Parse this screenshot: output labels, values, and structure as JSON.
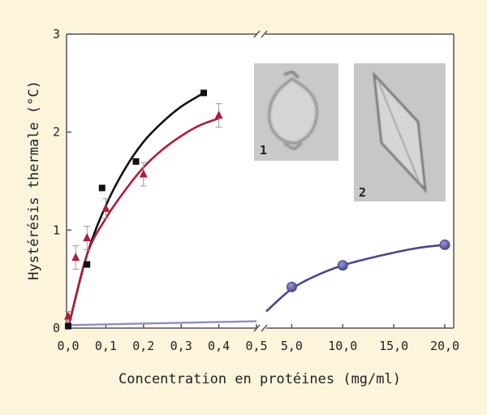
{
  "chart_data": {
    "type": "scatter",
    "xlabel": "Concentration en protéines (mg/ml)",
    "ylabel": "Hystérésis thermale (°C)",
    "ylim": [
      0,
      3
    ],
    "y_ticks": [
      "0",
      "1",
      "2",
      "3"
    ],
    "x_axis_left": {
      "range": [
        0,
        0.5
      ],
      "ticks": [
        "0,0",
        "0,1",
        "0,2",
        "0,3",
        "0,4",
        "0,5"
      ]
    },
    "x_axis_right": {
      "range": [
        2.5,
        20
      ],
      "ticks": [
        "5,0",
        "10,0",
        "15,0",
        "20,0"
      ]
    },
    "axis_break": true,
    "grid": false,
    "background_color": "#fdf4dc",
    "series": [
      {
        "marker": "square",
        "color": "#111111",
        "points": [
          [
            0.0,
            0.02
          ],
          [
            0.05,
            0.65
          ],
          [
            0.09,
            1.43
          ],
          [
            0.18,
            1.7
          ],
          [
            0.36,
            2.4
          ]
        ],
        "fit": [
          [
            0.0,
            0.0
          ],
          [
            0.05,
            0.75
          ],
          [
            0.1,
            1.25
          ],
          [
            0.15,
            1.62
          ],
          [
            0.2,
            1.9
          ],
          [
            0.25,
            2.1
          ],
          [
            0.3,
            2.26
          ],
          [
            0.36,
            2.4
          ]
        ]
      },
      {
        "marker": "triangle",
        "color": "#b01c3c",
        "points": [
          [
            0.0,
            0.12
          ],
          [
            0.02,
            0.72
          ],
          [
            0.05,
            0.92
          ],
          [
            0.1,
            1.22
          ],
          [
            0.2,
            1.57
          ],
          [
            0.4,
            2.17
          ]
        ],
        "errors": [
          0.05,
          0.12,
          0.12,
          0.1,
          0.12,
          0.12
        ],
        "fit": [
          [
            0.0,
            0.0
          ],
          [
            0.05,
            0.75
          ],
          [
            0.1,
            1.12
          ],
          [
            0.15,
            1.4
          ],
          [
            0.2,
            1.64
          ],
          [
            0.25,
            1.82
          ],
          [
            0.3,
            1.96
          ],
          [
            0.35,
            2.07
          ],
          [
            0.4,
            2.14
          ]
        ]
      },
      {
        "marker": "circle",
        "color": "#4a478f",
        "points": [
          [
            5.0,
            0.42
          ],
          [
            10.0,
            0.64
          ],
          [
            20.0,
            0.85
          ]
        ],
        "fit": [
          [
            2.5,
            0.17
          ],
          [
            5.0,
            0.4
          ],
          [
            7.5,
            0.54
          ],
          [
            10.0,
            0.64
          ],
          [
            12.5,
            0.71
          ],
          [
            15.0,
            0.77
          ],
          [
            17.5,
            0.82
          ],
          [
            20.0,
            0.85
          ]
        ],
        "baseline_left": [
          [
            0.0,
            0.03
          ],
          [
            0.5,
            0.07
          ]
        ]
      }
    ],
    "insets": [
      {
        "label": "1"
      },
      {
        "label": "2"
      }
    ]
  }
}
